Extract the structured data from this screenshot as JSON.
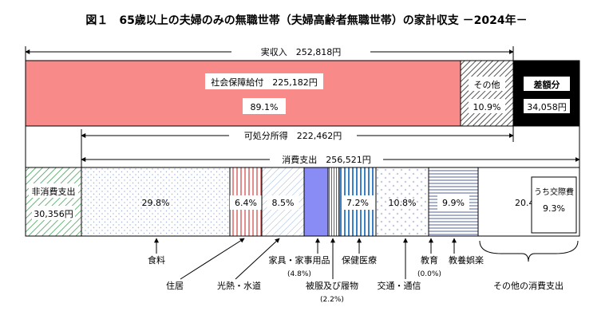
{
  "title": "図１　65歳以上の夫婦のみの無職世帯（夫婦高齢者無職世帯）の家計収支 －2024年－",
  "income": {
    "total_label": "実収入　252,818円",
    "total_value": 252818,
    "social_security_label": "社会保障給付　225,182円",
    "social_security_value": 225182,
    "social_security_pct": "89.1%",
    "other_label": "その他",
    "other_pct": "10.9%",
    "deficit_label": "差額分",
    "deficit_value_text": "34,058円",
    "deficit_value": 34058
  },
  "disposable_label": "可処分所得　222,462円",
  "disposable_value": 222462,
  "spending_label": "消費支出　256,521円",
  "spending_value": 256521,
  "non_consumption": {
    "label": "非消費支出",
    "value_text": "30,356円",
    "value": 30356
  },
  "colors": {
    "social_security": "#f88a8a",
    "deficit": "#000000",
    "blue_accent": "#8a8cf5",
    "green_hatch": "#3a9a50",
    "red_hatch": "#d04040",
    "dot_blue": "#9ab0e0"
  },
  "chart_data": {
    "type": "bar",
    "title": "図１　65歳以上の夫婦のみの無職世帯（夫婦高齢者無職世帯）の家計収支 －2024年－",
    "income_breakdown": [
      {
        "name": "社会保障給付",
        "value": 225182,
        "pct": 89.1
      },
      {
        "name": "その他",
        "pct": 10.9
      },
      {
        "name": "差額分",
        "value": 34058
      }
    ],
    "consumption_breakdown": [
      {
        "name": "食料",
        "pct": 29.8
      },
      {
        "name": "住居",
        "pct": 6.4
      },
      {
        "name": "光熱・水道",
        "pct": 8.5
      },
      {
        "name": "家具・家事用品",
        "pct": 4.8
      },
      {
        "name": "被服及び履物",
        "pct": 2.2
      },
      {
        "name": "保健医療",
        "pct": 7.2
      },
      {
        "name": "交通・通信",
        "pct": 10.8
      },
      {
        "name": "教育",
        "pct": 0.0
      },
      {
        "name": "教養娯楽",
        "pct": 9.9
      },
      {
        "name": "その他の消費支出",
        "pct": 20.4
      }
    ],
    "within_other": {
      "name": "うち交際費",
      "pct": 9.3
    },
    "segments": [
      {
        "key": "food",
        "pct_text": "29.8%",
        "label": "食料",
        "sub": ""
      },
      {
        "key": "housing",
        "pct_text": "6.4%",
        "label": "住居",
        "sub": ""
      },
      {
        "key": "utilities",
        "pct_text": "8.5%",
        "label": "光熱・水道",
        "sub": ""
      },
      {
        "key": "furniture",
        "pct_text": "",
        "label": "家具・家事用品",
        "sub": "(4.8%)"
      },
      {
        "key": "clothing",
        "pct_text": "",
        "label": "被服及び履物",
        "sub": "(2.2%)"
      },
      {
        "key": "medical",
        "pct_text": "7.2%",
        "label": "保健医療",
        "sub": ""
      },
      {
        "key": "transport",
        "pct_text": "10.8%",
        "label": "交通・通信",
        "sub": ""
      },
      {
        "key": "education",
        "pct_text": "",
        "label": "教育",
        "sub": "(0.0%)"
      },
      {
        "key": "culture",
        "pct_text": "9.9%",
        "label": "教養娯楽",
        "sub": ""
      },
      {
        "key": "other",
        "pct_text": "20.4%",
        "label": "その他の消費支出",
        "sub": ""
      }
    ],
    "other_inner": {
      "label": "うち交際費",
      "pct_text": "9.3%"
    }
  }
}
